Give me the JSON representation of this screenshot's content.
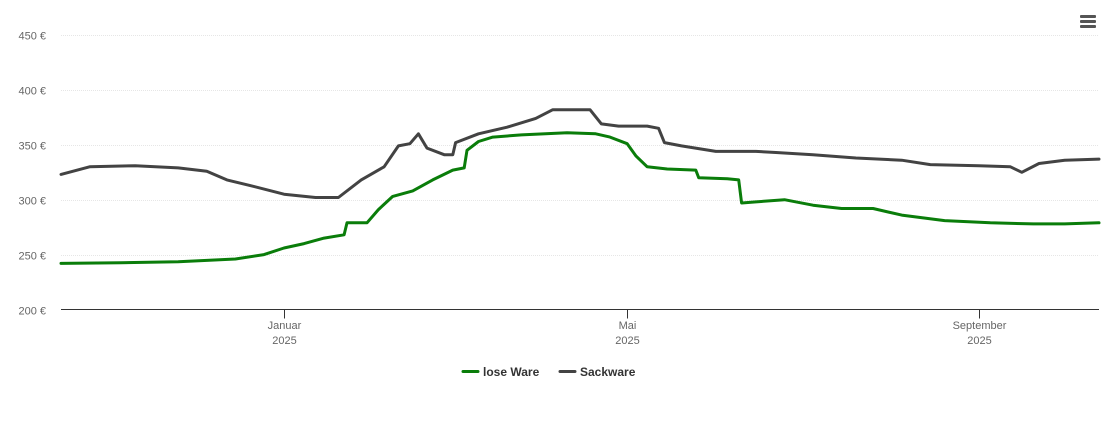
{
  "chart_data": {
    "type": "line",
    "title": "",
    "xlabel": "",
    "ylabel": "",
    "ylim": [
      200,
      450
    ],
    "y_ticks": [
      "200 €",
      "250 €",
      "300 €",
      "350 €",
      "400 €",
      "450 €"
    ],
    "y_tick_values": [
      200,
      250,
      300,
      350,
      400,
      450
    ],
    "x_range": [
      "2024-10-15",
      "2025-10-13"
    ],
    "x_ticks": [
      {
        "date": "2025-01-01",
        "label": "Januar",
        "year": "2025"
      },
      {
        "date": "2025-05-01",
        "label": "Mai",
        "year": "2025"
      },
      {
        "date": "2025-09-01",
        "label": "September",
        "year": "2025"
      }
    ],
    "grid": true,
    "legend_position": "bottom-center",
    "series": [
      {
        "name": "lose Ware",
        "color": "#0a7d0a",
        "points": [
          [
            "2024-10-15",
            242
          ],
          [
            "2024-11-05",
            242.5
          ],
          [
            "2024-11-25",
            243.5
          ],
          [
            "2024-12-15",
            246
          ],
          [
            "2024-12-25",
            250
          ],
          [
            "2025-01-01",
            256
          ],
          [
            "2025-01-08",
            260
          ],
          [
            "2025-01-15",
            265
          ],
          [
            "2025-01-22",
            268
          ],
          [
            "2025-01-23",
            279
          ],
          [
            "2025-01-30",
            279
          ],
          [
            "2025-02-03",
            291
          ],
          [
            "2025-02-08",
            303
          ],
          [
            "2025-02-15",
            308
          ],
          [
            "2025-02-22",
            318
          ],
          [
            "2025-03-01",
            327
          ],
          [
            "2025-03-05",
            329
          ],
          [
            "2025-03-06",
            345
          ],
          [
            "2025-03-10",
            353
          ],
          [
            "2025-03-15",
            357
          ],
          [
            "2025-03-25",
            359
          ],
          [
            "2025-04-10",
            361
          ],
          [
            "2025-04-20",
            360
          ],
          [
            "2025-04-25",
            357
          ],
          [
            "2025-05-01",
            351
          ],
          [
            "2025-05-04",
            340
          ],
          [
            "2025-05-08",
            330
          ],
          [
            "2025-05-15",
            328
          ],
          [
            "2025-05-25",
            327
          ],
          [
            "2025-05-26",
            320
          ],
          [
            "2025-06-05",
            319
          ],
          [
            "2025-06-09",
            318
          ],
          [
            "2025-06-10",
            297
          ],
          [
            "2025-06-15",
            298
          ],
          [
            "2025-06-25",
            300
          ],
          [
            "2025-07-05",
            295
          ],
          [
            "2025-07-15",
            292
          ],
          [
            "2025-07-26",
            292
          ],
          [
            "2025-08-05",
            286
          ],
          [
            "2025-08-20",
            281
          ],
          [
            "2025-09-05",
            279
          ],
          [
            "2025-09-20",
            278
          ],
          [
            "2025-10-01",
            278
          ],
          [
            "2025-10-13",
            279
          ]
        ]
      },
      {
        "name": "Sackware",
        "color": "#434343",
        "points": [
          [
            "2024-10-15",
            323
          ],
          [
            "2024-10-25",
            330
          ],
          [
            "2024-11-10",
            331
          ],
          [
            "2024-11-25",
            329
          ],
          [
            "2024-12-05",
            326
          ],
          [
            "2024-12-12",
            318
          ],
          [
            "2024-12-20",
            313
          ],
          [
            "2025-01-01",
            305
          ],
          [
            "2025-01-12",
            302
          ],
          [
            "2025-01-20",
            302
          ],
          [
            "2025-01-28",
            318
          ],
          [
            "2025-02-05",
            330
          ],
          [
            "2025-02-10",
            349
          ],
          [
            "2025-02-14",
            351
          ],
          [
            "2025-02-17",
            360
          ],
          [
            "2025-02-20",
            347
          ],
          [
            "2025-02-26",
            341
          ],
          [
            "2025-03-01",
            341
          ],
          [
            "2025-03-02",
            352
          ],
          [
            "2025-03-10",
            360
          ],
          [
            "2025-03-20",
            366
          ],
          [
            "2025-03-30",
            374
          ],
          [
            "2025-04-05",
            382
          ],
          [
            "2025-04-18",
            382
          ],
          [
            "2025-04-22",
            369
          ],
          [
            "2025-04-28",
            367
          ],
          [
            "2025-05-08",
            367
          ],
          [
            "2025-05-12",
            365
          ],
          [
            "2025-05-14",
            352
          ],
          [
            "2025-05-20",
            349
          ],
          [
            "2025-06-01",
            344
          ],
          [
            "2025-06-15",
            344
          ],
          [
            "2025-06-22",
            343
          ],
          [
            "2025-07-05",
            341
          ],
          [
            "2025-07-20",
            338
          ],
          [
            "2025-08-05",
            336
          ],
          [
            "2025-08-15",
            332
          ],
          [
            "2025-09-01",
            331
          ],
          [
            "2025-09-12",
            330
          ],
          [
            "2025-09-16",
            325
          ],
          [
            "2025-09-22",
            333
          ],
          [
            "2025-10-01",
            336
          ],
          [
            "2025-10-13",
            337
          ]
        ]
      }
    ]
  },
  "menu": {
    "icon": "hamburger-menu-icon"
  }
}
